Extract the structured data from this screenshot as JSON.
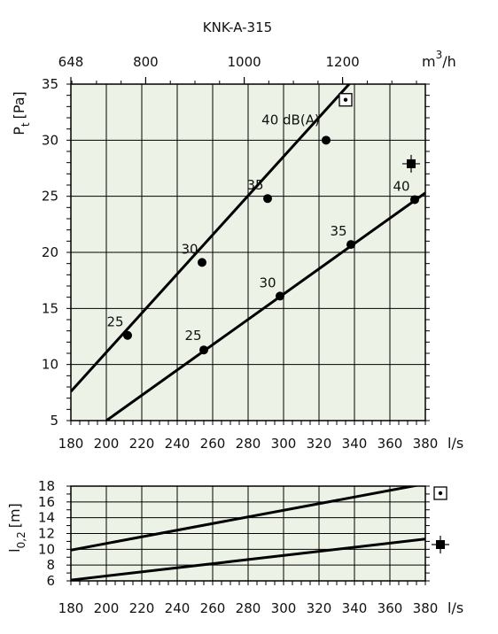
{
  "chart_data": [
    {
      "type": "line",
      "title": "KNK-A-315",
      "xlabel": "l/s",
      "ylabel_main": "P",
      "ylabel_sub": "t",
      "ylabel_unit": "[Pa]",
      "xlim": [
        180,
        380
      ],
      "ylim": [
        5,
        35
      ],
      "x_ticks": [
        "180",
        "200",
        "220",
        "240",
        "260",
        "280",
        "300",
        "320",
        "340",
        "360",
        "380"
      ],
      "y_ticks": [
        "5",
        "10",
        "15",
        "20",
        "25",
        "30",
        "35"
      ],
      "top_axis": {
        "unit_main": "m",
        "unit_sup": "3",
        "unit_tail": "/h",
        "ticks": [
          {
            "label": "648",
            "ls": 180
          },
          {
            "label": "800",
            "ls": 222.2
          },
          {
            "label": "1000",
            "ls": 277.8
          },
          {
            "label": "1200",
            "ls": 333.3
          }
        ]
      },
      "grid": true,
      "series": [
        {
          "name": "upper",
          "line": [
            [
              180,
              7.6
            ],
            [
              337,
              35
            ]
          ],
          "points": [
            {
              "x": 212,
              "y": 12.6,
              "label": "25"
            },
            {
              "x": 254,
              "y": 19.1,
              "label": "30"
            },
            {
              "x": 291,
              "y": 24.8,
              "label": "35"
            },
            {
              "x": 324,
              "y": 30.0,
              "label": "40 dB(A)"
            }
          ]
        },
        {
          "name": "lower",
          "line": [
            [
              200,
              5
            ],
            [
              380,
              25.3
            ]
          ],
          "points": [
            {
              "x": 255,
              "y": 11.3,
              "label": "25"
            },
            {
              "x": 298,
              "y": 16.1,
              "label": "30"
            },
            {
              "x": 338,
              "y": 20.7,
              "label": "35"
            },
            {
              "x": 374,
              "y": 24.7,
              "label": "40"
            }
          ]
        }
      ],
      "legend_symbols": [
        {
          "name": "boxed-dot-symbol-icon",
          "x": 335,
          "y": 33.6
        },
        {
          "name": "filled-square-crosshair-icon",
          "x": 372,
          "y": 27.9
        }
      ]
    },
    {
      "type": "line",
      "xlabel": "l/s",
      "ylabel_main": "l",
      "ylabel_sub": "0,2",
      "ylabel_unit": "[m]",
      "xlim": [
        180,
        380
      ],
      "ylim": [
        6,
        18
      ],
      "x_ticks": [
        "180",
        "200",
        "220",
        "240",
        "260",
        "280",
        "300",
        "320",
        "340",
        "360",
        "380"
      ],
      "y_ticks": [
        "6",
        "8",
        "10",
        "12",
        "14",
        "16",
        "18"
      ],
      "grid": true,
      "series": [
        {
          "name": "upper",
          "line": [
            [
              180,
              9.9
            ],
            [
              380,
              18.3
            ]
          ]
        },
        {
          "name": "lower",
          "line": [
            [
              180,
              6.1
            ],
            [
              380,
              11.3
            ]
          ]
        }
      ],
      "legend_symbols": [
        {
          "name": "boxed-dot-symbol-icon"
        },
        {
          "name": "filled-square-crosshair-icon"
        }
      ]
    }
  ]
}
